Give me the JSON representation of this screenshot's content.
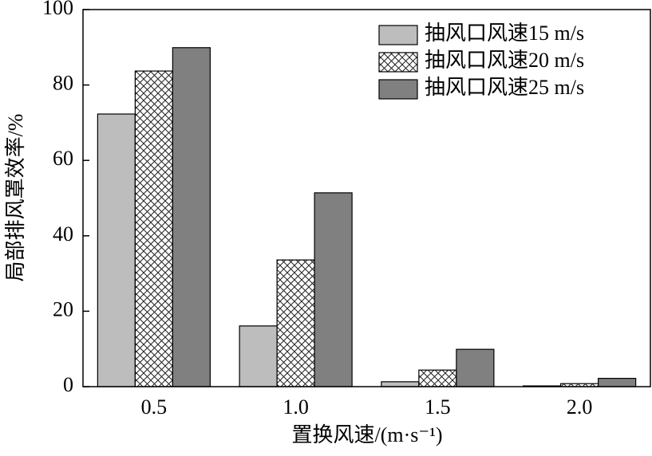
{
  "chart_data": {
    "type": "bar",
    "x_label": "置换风速/(m·s⁻¹)",
    "y_label": "局部排风罩效率/%",
    "categories": [
      "0.5",
      "1.0",
      "1.5",
      "2.0"
    ],
    "series": [
      {
        "name": "抽风口风速15 m/s",
        "color": "#bdbdbd",
        "values": [
          72.3,
          16.1,
          1.3,
          0.2
        ]
      },
      {
        "name": "抽风口风速20 m/s",
        "color": "#ffffff",
        "pattern": "crosshatch",
        "values": [
          83.7,
          33.6,
          4.4,
          0.8
        ]
      },
      {
        "name": "抽风口风速25 m/s",
        "color": "#808080",
        "values": [
          89.9,
          51.4,
          9.9,
          2.2
        ]
      }
    ],
    "ylim": [
      0,
      100
    ],
    "yticks": [
      0,
      20,
      40,
      60,
      80,
      100
    ],
    "legend": "upper-right",
    "grid": false
  }
}
